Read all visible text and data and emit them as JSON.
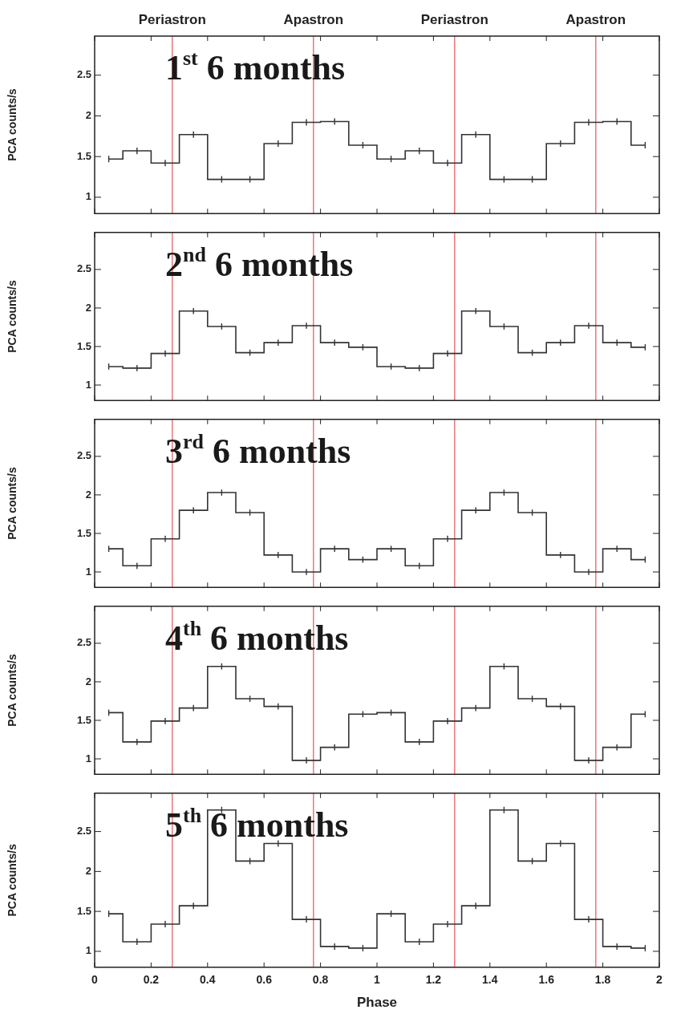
{
  "chart_data": [
    {
      "type": "step",
      "title": "1$^{st}$ 6 months",
      "ylabel": "PCA counts/s",
      "tick_labels": "y",
      "grid": false,
      "legend": false,
      "x": [
        0.05,
        0.15,
        0.25,
        0.35,
        0.45,
        0.55,
        0.65,
        0.75,
        0.85,
        0.95,
        1.05,
        1.15,
        1.25,
        1.35,
        1.45,
        1.55,
        1.65,
        1.75,
        1.85,
        1.95
      ],
      "series": [
        {
          "color": "#333333",
          "values": [
            1.47,
            1.57,
            1.42,
            1.77,
            1.22,
            1.22,
            1.66,
            1.92,
            1.93,
            1.64,
            1.47,
            1.57,
            1.42,
            1.77,
            1.22,
            1.22,
            1.66,
            1.92,
            1.93,
            1.64
          ],
          "errors": [
            0.04,
            0.04,
            0.04,
            0.04,
            0.04,
            0.04,
            0.04,
            0.04,
            0.04,
            0.04,
            0.04,
            0.04,
            0.04,
            0.04,
            0.04,
            0.04,
            0.04,
            0.04,
            0.04,
            0.04
          ]
        }
      ],
      "xlim": [
        0,
        2
      ],
      "xticks": [
        0,
        0.2,
        0.4,
        0.6,
        0.8,
        1,
        1.2,
        1.4,
        1.6,
        1.8,
        2
      ],
      "ylim": [
        0.8,
        2.98
      ],
      "yticks": [
        1,
        1.5,
        2,
        2.5
      ],
      "ref_lines": [
        {
          "axis": "x",
          "value": 0.275,
          "label": "Periastron",
          "color": "#e87878"
        },
        {
          "axis": "x",
          "value": 0.775,
          "label": "Apastron",
          "color": "#e87878"
        },
        {
          "axis": "x",
          "value": 1.275,
          "label": "Periastron",
          "color": "#e87878"
        },
        {
          "axis": "x",
          "value": 1.775,
          "label": "Apastron",
          "color": "#e87878"
        }
      ]
    },
    {
      "type": "step",
      "title": "2$^{nd}$ 6 months",
      "ylabel": "PCA counts/s",
      "tick_labels": "y",
      "grid": false,
      "legend": false,
      "x": [
        0.05,
        0.15,
        0.25,
        0.35,
        0.45,
        0.55,
        0.65,
        0.75,
        0.85,
        0.95,
        1.05,
        1.15,
        1.25,
        1.35,
        1.45,
        1.55,
        1.65,
        1.75,
        1.85,
        1.95
      ],
      "series": [
        {
          "color": "#333333",
          "values": [
            1.24,
            1.22,
            1.41,
            1.96,
            1.76,
            1.42,
            1.55,
            1.77,
            1.55,
            1.49,
            1.24,
            1.22,
            1.41,
            1.96,
            1.76,
            1.42,
            1.55,
            1.77,
            1.55,
            1.49
          ],
          "errors": [
            0.04,
            0.04,
            0.04,
            0.04,
            0.04,
            0.04,
            0.04,
            0.04,
            0.04,
            0.04,
            0.04,
            0.04,
            0.04,
            0.04,
            0.04,
            0.04,
            0.04,
            0.04,
            0.04,
            0.04
          ]
        }
      ],
      "xlim": [
        0,
        2
      ],
      "xticks": [
        0,
        0.2,
        0.4,
        0.6,
        0.8,
        1,
        1.2,
        1.4,
        1.6,
        1.8,
        2
      ],
      "ylim": [
        0.8,
        2.98
      ],
      "yticks": [
        1,
        1.5,
        2,
        2.5
      ],
      "ref_lines": [
        {
          "axis": "x",
          "value": 0.275,
          "color": "#e87878"
        },
        {
          "axis": "x",
          "value": 0.775,
          "color": "#e87878"
        },
        {
          "axis": "x",
          "value": 1.275,
          "color": "#e87878"
        },
        {
          "axis": "x",
          "value": 1.775,
          "color": "#e87878"
        }
      ]
    },
    {
      "type": "step",
      "title": "3$^{rd}$ 6 months",
      "ylabel": "PCA counts/s",
      "tick_labels": "y",
      "grid": false,
      "legend": false,
      "x": [
        0.05,
        0.15,
        0.25,
        0.35,
        0.45,
        0.55,
        0.65,
        0.75,
        0.85,
        0.95,
        1.05,
        1.15,
        1.25,
        1.35,
        1.45,
        1.55,
        1.65,
        1.75,
        1.85,
        1.95
      ],
      "series": [
        {
          "color": "#333333",
          "values": [
            1.3,
            1.08,
            1.43,
            1.8,
            2.03,
            1.77,
            1.22,
            1.0,
            1.3,
            1.16,
            1.3,
            1.08,
            1.43,
            1.8,
            2.03,
            1.77,
            1.22,
            1.0,
            1.3,
            1.16
          ],
          "errors": [
            0.04,
            0.04,
            0.04,
            0.04,
            0.04,
            0.04,
            0.04,
            0.04,
            0.04,
            0.04,
            0.04,
            0.04,
            0.04,
            0.04,
            0.04,
            0.04,
            0.04,
            0.04,
            0.04,
            0.04
          ]
        }
      ],
      "xlim": [
        0,
        2
      ],
      "xticks": [
        0,
        0.2,
        0.4,
        0.6,
        0.8,
        1,
        1.2,
        1.4,
        1.6,
        1.8,
        2
      ],
      "ylim": [
        0.8,
        2.98
      ],
      "yticks": [
        1,
        1.5,
        2,
        2.5
      ],
      "ref_lines": [
        {
          "axis": "x",
          "value": 0.275,
          "color": "#e87878"
        },
        {
          "axis": "x",
          "value": 0.775,
          "color": "#e87878"
        },
        {
          "axis": "x",
          "value": 1.275,
          "color": "#e87878"
        },
        {
          "axis": "x",
          "value": 1.775,
          "color": "#e87878"
        }
      ]
    },
    {
      "type": "step",
      "title": "4$^{th}$ 6 months",
      "ylabel": "PCA counts/s",
      "tick_labels": "y",
      "grid": false,
      "legend": false,
      "x": [
        0.05,
        0.15,
        0.25,
        0.35,
        0.45,
        0.55,
        0.65,
        0.75,
        0.85,
        0.95,
        1.05,
        1.15,
        1.25,
        1.35,
        1.45,
        1.55,
        1.65,
        1.75,
        1.85,
        1.95
      ],
      "series": [
        {
          "color": "#333333",
          "values": [
            1.6,
            1.22,
            1.49,
            1.66,
            2.2,
            1.78,
            1.68,
            0.98,
            1.15,
            1.58,
            1.6,
            1.22,
            1.49,
            1.66,
            2.2,
            1.78,
            1.68,
            0.98,
            1.15,
            1.58
          ],
          "errors": [
            0.04,
            0.04,
            0.04,
            0.04,
            0.04,
            0.04,
            0.04,
            0.04,
            0.04,
            0.04,
            0.04,
            0.04,
            0.04,
            0.04,
            0.04,
            0.04,
            0.04,
            0.04,
            0.04,
            0.04
          ]
        }
      ],
      "xlim": [
        0,
        2
      ],
      "xticks": [
        0,
        0.2,
        0.4,
        0.6,
        0.8,
        1,
        1.2,
        1.4,
        1.6,
        1.8,
        2
      ],
      "ylim": [
        0.8,
        2.98
      ],
      "yticks": [
        1,
        1.5,
        2,
        2.5
      ],
      "ref_lines": [
        {
          "axis": "x",
          "value": 0.275,
          "color": "#e87878"
        },
        {
          "axis": "x",
          "value": 0.775,
          "color": "#e87878"
        },
        {
          "axis": "x",
          "value": 1.275,
          "color": "#e87878"
        },
        {
          "axis": "x",
          "value": 1.775,
          "color": "#e87878"
        }
      ]
    },
    {
      "type": "step",
      "title": "5$^{th}$ 6 months",
      "xlabel": "Phase",
      "ylabel": "PCA counts/s",
      "grid": false,
      "legend": false,
      "x": [
        0.05,
        0.15,
        0.25,
        0.35,
        0.45,
        0.55,
        0.65,
        0.75,
        0.85,
        0.95,
        1.05,
        1.15,
        1.25,
        1.35,
        1.45,
        1.55,
        1.65,
        1.75,
        1.85,
        1.95
      ],
      "series": [
        {
          "color": "#333333",
          "values": [
            1.47,
            1.12,
            1.34,
            1.57,
            2.77,
            2.13,
            2.35,
            1.4,
            1.06,
            1.04,
            1.47,
            1.12,
            1.34,
            1.57,
            2.77,
            2.13,
            2.35,
            1.4,
            1.06,
            1.04
          ],
          "errors": [
            0.04,
            0.04,
            0.04,
            0.04,
            0.04,
            0.04,
            0.04,
            0.04,
            0.04,
            0.04,
            0.04,
            0.04,
            0.04,
            0.04,
            0.04,
            0.04,
            0.04,
            0.04,
            0.04,
            0.04
          ]
        }
      ],
      "xlim": [
        0,
        2
      ],
      "xticks": [
        0,
        0.2,
        0.4,
        0.6,
        0.8,
        1,
        1.2,
        1.4,
        1.6,
        1.8,
        2
      ],
      "ylim": [
        0.8,
        2.98
      ],
      "yticks": [
        1,
        1.5,
        2,
        2.5
      ],
      "ref_lines": [
        {
          "axis": "x",
          "value": 0.275,
          "color": "#e87878"
        },
        {
          "axis": "x",
          "value": 0.775,
          "color": "#e87878"
        },
        {
          "axis": "x",
          "value": 1.275,
          "color": "#e87878"
        },
        {
          "axis": "x",
          "value": 1.775,
          "color": "#e87878"
        }
      ]
    }
  ]
}
